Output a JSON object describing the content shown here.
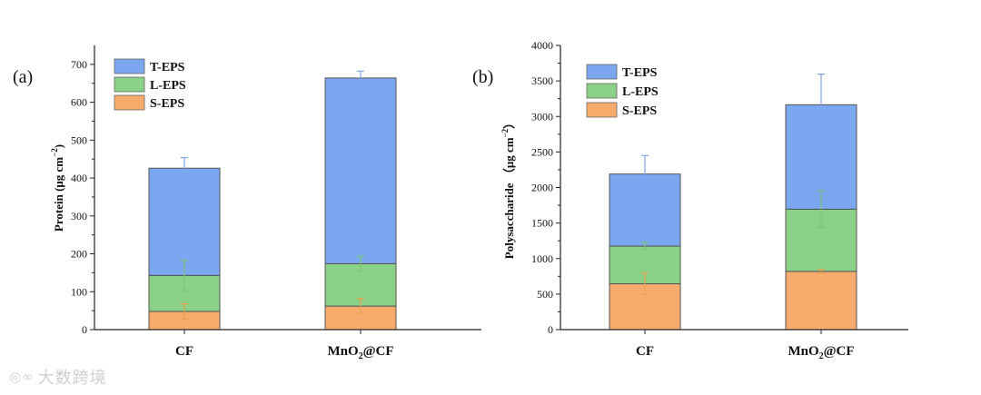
{
  "watermark": {
    "icon": "weibo-icon",
    "text": "大数跨境"
  },
  "chart_data": [
    {
      "panel": "(a)",
      "type": "bar",
      "stacked": true,
      "ylabel": "Protein (μg cm⁻²)",
      "ylabel_parts": {
        "main": "Protein (μg cm",
        "sup": "−2",
        "end": ")"
      },
      "ylim": [
        0,
        750
      ],
      "yticks": [
        0,
        100,
        200,
        300,
        400,
        500,
        600,
        700
      ],
      "categories": [
        "CF",
        "MnO₂@CF"
      ],
      "category_parts": [
        {
          "main": "CF",
          "sub": "",
          "end": ""
        },
        {
          "main": "MnO",
          "sub": "2",
          "end": "@CF"
        }
      ],
      "legend_position": "top-left",
      "series": [
        {
          "name": "S-EPS",
          "color": "#f7ab6c",
          "err_color": "#e8a050",
          "values": [
            48,
            62
          ],
          "errors": [
            20,
            20
          ]
        },
        {
          "name": "L-EPS",
          "color": "#8bd288",
          "err_color": "#7cc47a",
          "values": [
            95,
            112
          ],
          "errors": [
            40,
            20
          ]
        },
        {
          "name": "T-EPS",
          "color": "#7aa7ef",
          "err_color": "#7aa7ef",
          "values": [
            283,
            490
          ],
          "errors": [
            28,
            18
          ]
        }
      ]
    },
    {
      "panel": "(b)",
      "type": "bar",
      "stacked": true,
      "ylabel": "Polysaccharide （μg cm⁻²）",
      "ylabel_parts": {
        "main": "Polysaccharide （μg cm",
        "sup": "−2",
        "end": "）"
      },
      "ylim": [
        0,
        4000
      ],
      "yticks": [
        0,
        500,
        1000,
        1500,
        2000,
        2500,
        3000,
        3500,
        4000
      ],
      "categories": [
        "CF",
        "MnO₂@CF"
      ],
      "category_parts": [
        {
          "main": "CF",
          "sub": "",
          "end": ""
        },
        {
          "main": "MnO",
          "sub": "2",
          "end": "@CF"
        }
      ],
      "legend_position": "top-left",
      "series": [
        {
          "name": "S-EPS",
          "color": "#f7ab6c",
          "err_color": "#e8a050",
          "values": [
            645,
            820
          ],
          "errors": [
            150,
            30
          ]
        },
        {
          "name": "L-EPS",
          "color": "#8bd288",
          "err_color": "#7cc47a",
          "values": [
            530,
            875
          ],
          "errors": [
            50,
            260
          ]
        },
        {
          "name": "T-EPS",
          "color": "#7aa7ef",
          "err_color": "#7aa7ef",
          "values": [
            1015,
            1470
          ],
          "errors": [
            260,
            430
          ]
        }
      ]
    }
  ]
}
